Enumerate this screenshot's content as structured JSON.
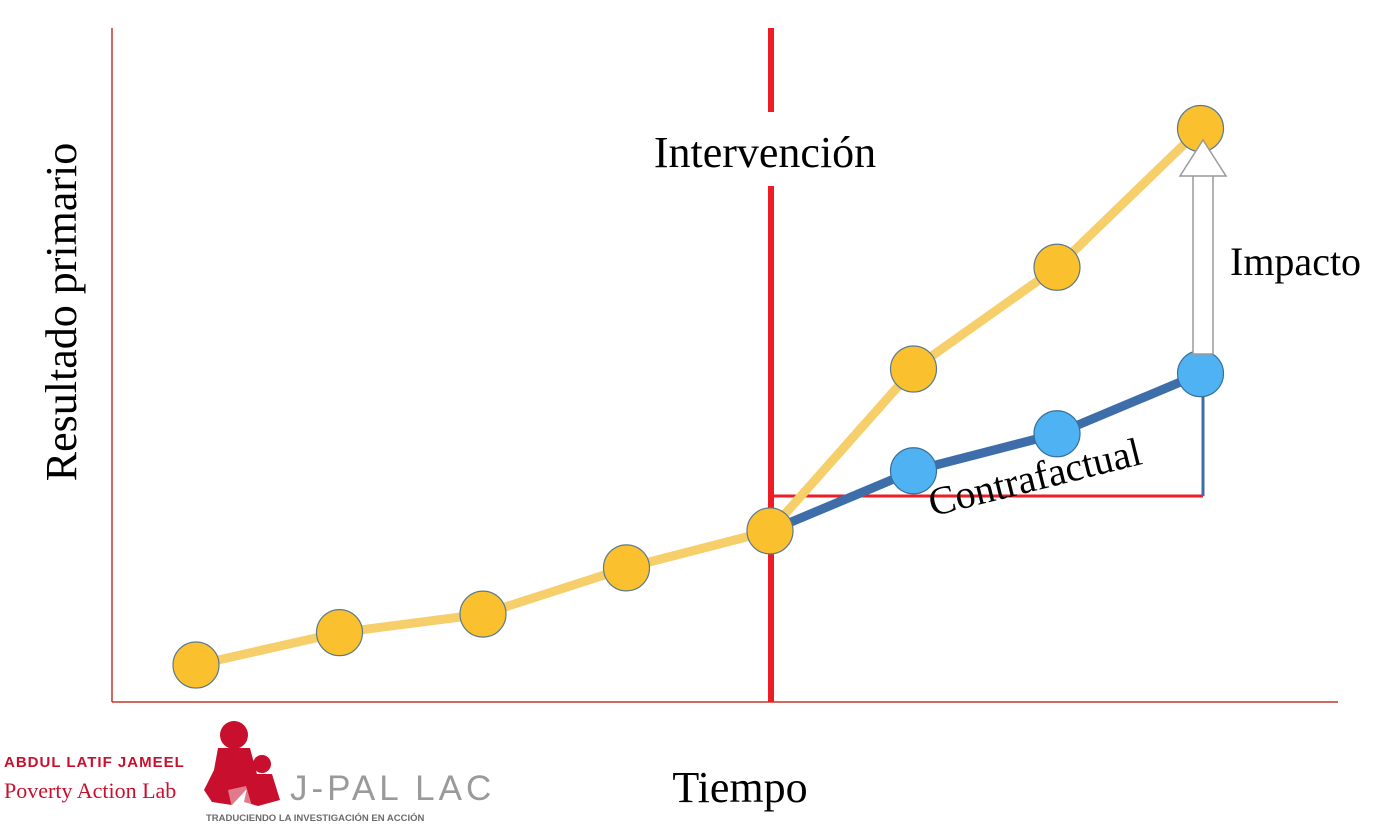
{
  "chart_data": {
    "type": "line",
    "ylabel": "Resultado primario",
    "xlabel": "Tiempo",
    "x": [
      1,
      2,
      3,
      4,
      5,
      6,
      7,
      8
    ],
    "series": [
      {
        "values": [
          1.0,
          1.35,
          1.55,
          2.05,
          2.45,
          4.2,
          5.3,
          6.8
        ]
      },
      {
        "values": [
          null,
          null,
          null,
          null,
          2.45,
          3.1,
          3.5,
          4.15
        ]
      }
    ],
    "intervention_x": 5,
    "annotations": {
      "intervention": "Intervención",
      "impact": "Impacto",
      "counterfactual": "Contrafactual"
    },
    "grid": false
  },
  "colors": {
    "treated_line": "#f6cf6b",
    "treated_point": "#fbc02d",
    "counterfactual_line": "#3d6eaa",
    "counterfactual_point": "#4fb2f2",
    "intervention_line": "#ee1c25",
    "axis": "#c0392b",
    "brand_red": "#c8102e",
    "brand_gray": "#9a9a9a"
  },
  "logo": {
    "line1": "ABDUL LATIF JAMEEL",
    "line2": "Poverty Action Lab",
    "brand": "J-PAL LAC",
    "tagline": "TRADUCIENDO LA INVESTIGACIÓN EN ACCIÓN"
  }
}
